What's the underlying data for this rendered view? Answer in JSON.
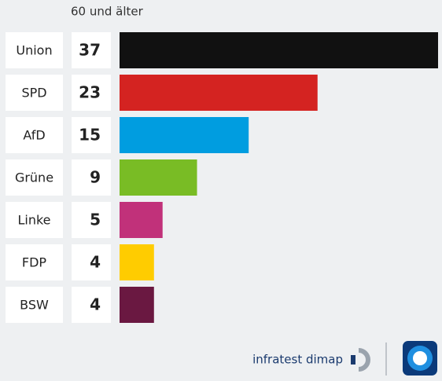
{
  "chart_data": {
    "type": "hbar",
    "title": "60 und älter",
    "categories": [
      "Union",
      "SPD",
      "AfD",
      "Grüne",
      "Linke",
      "FDP",
      "BSW"
    ],
    "values": [
      37,
      23,
      15,
      9,
      5,
      4,
      4
    ],
    "colors": [
      "#111111",
      "#d42321",
      "#009de0",
      "#79bc25",
      "#c1317a",
      "#ffcc00",
      "#6a1841"
    ],
    "source": "infratest dimap"
  }
}
